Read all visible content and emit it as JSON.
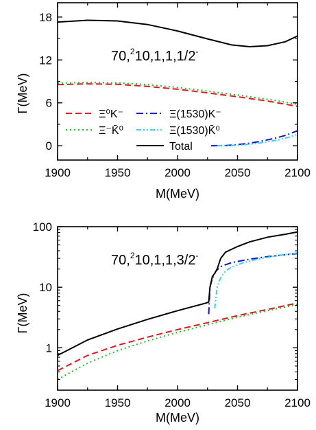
{
  "chart_data": [
    {
      "type": "line",
      "annotation": {
        "base": "70,",
        "sup1": "2",
        "mid": "10,1,1,1/2",
        "sup2": "-"
      },
      "xlabel": "M(MeV)",
      "ylabel": "Γ(MeV)",
      "xlim": [
        1900,
        2100
      ],
      "ylim": [
        -2,
        20
      ],
      "yscale": "linear",
      "xticks": [
        "1900",
        "1950",
        "2000",
        "2050",
        "2100"
      ],
      "yticks": [
        {
          "v": 0,
          "t": "0"
        },
        {
          "v": 6,
          "t": "6"
        },
        {
          "v": 12,
          "t": "12"
        },
        {
          "v": 18,
          "t": "18"
        }
      ],
      "legend_position": "lower-left",
      "series": [
        {
          "key": "xi0k",
          "name": "Ξ⁰K⁻",
          "color": "#e8141b",
          "dash": "9,5",
          "points": [
            [
              1900,
              8.55
            ],
            [
              1925,
              8.65
            ],
            [
              1950,
              8.6
            ],
            [
              1975,
              8.3
            ],
            [
              2000,
              7.9
            ],
            [
              2025,
              7.4
            ],
            [
              2050,
              6.85
            ],
            [
              2075,
              6.25
            ],
            [
              2100,
              5.5
            ]
          ]
        },
        {
          "key": "ximk",
          "name": "Ξ⁻K̄⁰",
          "color": "#18c418",
          "dash": "2,4",
          "points": [
            [
              1900,
              8.75
            ],
            [
              1925,
              8.85
            ],
            [
              1950,
              8.8
            ],
            [
              1975,
              8.55
            ],
            [
              2000,
              8.15
            ],
            [
              2025,
              7.65
            ],
            [
              2050,
              7.1
            ],
            [
              2075,
              6.5
            ],
            [
              2100,
              5.8
            ]
          ]
        },
        {
          "key": "xi1530k",
          "name": "Ξ(1530)K⁻",
          "color": "#1010d8",
          "dash": "10,4,2,4",
          "points": [
            [
              2028,
              0
            ],
            [
              2040,
              0.03
            ],
            [
              2050,
              0.15
            ],
            [
              2060,
              0.35
            ],
            [
              2070,
              0.65
            ],
            [
              2080,
              1.0
            ],
            [
              2090,
              1.45
            ],
            [
              2100,
              2.1
            ]
          ]
        },
        {
          "key": "xi1530kbar",
          "name": "Ξ(1530)K̄⁰",
          "color": "#30d8e8",
          "dash": "7,3,2,3,2,3",
          "points": [
            [
              2033,
              0
            ],
            [
              2045,
              0.03
            ],
            [
              2055,
              0.13
            ],
            [
              2065,
              0.3
            ],
            [
              2075,
              0.55
            ],
            [
              2085,
              0.85
            ],
            [
              2093,
              1.2
            ],
            [
              2100,
              1.6
            ]
          ]
        },
        {
          "key": "total",
          "name": "Total",
          "color": "#000000",
          "dash": "",
          "points": [
            [
              1900,
              17.3
            ],
            [
              1925,
              17.55
            ],
            [
              1950,
              17.45
            ],
            [
              1975,
              16.95
            ],
            [
              2000,
              16.05
            ],
            [
              2025,
              14.95
            ],
            [
              2045,
              14.1
            ],
            [
              2060,
              13.85
            ],
            [
              2075,
              14.0
            ],
            [
              2090,
              14.55
            ],
            [
              2100,
              15.35
            ]
          ]
        }
      ]
    },
    {
      "type": "line",
      "annotation": {
        "base": "70,",
        "sup1": "2",
        "mid": "10,1,1,3/2",
        "sup2": "-"
      },
      "xlabel": "M(MeV)",
      "ylabel": "Γ(MeV)",
      "xlim": [
        1900,
        2100
      ],
      "ylim": [
        0.2,
        100
      ],
      "yscale": "log",
      "xticks": [
        "1900",
        "1950",
        "2000",
        "2050",
        "2100"
      ],
      "yticks": [
        {
          "v": 1,
          "t": "1"
        },
        {
          "v": 10,
          "t": "10"
        },
        {
          "v": 100,
          "t": "100"
        }
      ],
      "series": [
        {
          "key": "xi0k",
          "color": "#e8141b",
          "dash": "9,5",
          "points": [
            [
              1900,
              0.42
            ],
            [
              1925,
              0.75
            ],
            [
              1950,
              1.1
            ],
            [
              1975,
              1.5
            ],
            [
              2000,
              2.0
            ],
            [
              2025,
              2.6
            ],
            [
              2050,
              3.4
            ],
            [
              2075,
              4.3
            ],
            [
              2100,
              5.5
            ]
          ]
        },
        {
          "key": "ximk",
          "color": "#18c418",
          "dash": "2,4",
          "points": [
            [
              1900,
              0.3
            ],
            [
              1925,
              0.56
            ],
            [
              1950,
              0.9
            ],
            [
              1975,
              1.3
            ],
            [
              2000,
              1.8
            ],
            [
              2025,
              2.4
            ],
            [
              2050,
              3.2
            ],
            [
              2075,
              4.1
            ],
            [
              2100,
              5.2
            ]
          ]
        },
        {
          "key": "xi1530k",
          "color": "#1010d8",
          "dash": "10,4,2,4",
          "points": [
            [
              2026,
              3.6
            ],
            [
              2027,
              10
            ],
            [
              2029,
              14
            ],
            [
              2032,
              18.5
            ],
            [
              2036,
              22
            ],
            [
              2045,
              25.5
            ],
            [
              2060,
              29
            ],
            [
              2075,
              32
            ],
            [
              2090,
              34.5
            ],
            [
              2100,
              36
            ]
          ]
        },
        {
          "key": "xi1530kbar",
          "color": "#30d8e8",
          "dash": "7,3,2,3,2,3",
          "points": [
            [
              2031,
              4.5
            ],
            [
              2033,
              10
            ],
            [
              2036,
              14.5
            ],
            [
              2040,
              18.5
            ],
            [
              2045,
              21.5
            ],
            [
              2055,
              25.5
            ],
            [
              2070,
              30
            ],
            [
              2085,
              33.5
            ],
            [
              2100,
              37
            ]
          ]
        },
        {
          "key": "total",
          "color": "#000000",
          "dash": "",
          "points": [
            [
              1900,
              0.75
            ],
            [
              1925,
              1.35
            ],
            [
              1950,
              2.05
            ],
            [
              1975,
              2.95
            ],
            [
              2000,
              4.1
            ],
            [
              2024,
              5.5
            ],
            [
              2026,
              5.7
            ],
            [
              2027,
              10
            ],
            [
              2029,
              15
            ],
            [
              2031,
              17
            ],
            [
              2033,
              20
            ],
            [
              2036,
              30
            ],
            [
              2040,
              38
            ],
            [
              2050,
              47
            ],
            [
              2060,
              56
            ],
            [
              2075,
              67
            ],
            [
              2090,
              75
            ],
            [
              2100,
              82
            ]
          ]
        }
      ]
    }
  ]
}
